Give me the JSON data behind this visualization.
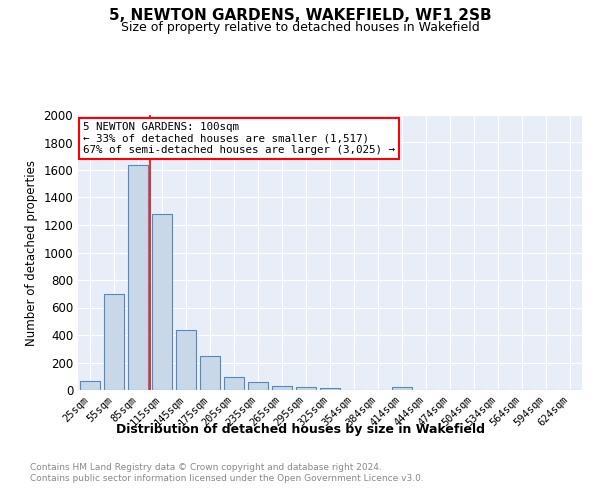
{
  "title": "5, NEWTON GARDENS, WAKEFIELD, WF1 2SB",
  "subtitle": "Size of property relative to detached houses in Wakefield",
  "xlabel": "Distribution of detached houses by size in Wakefield",
  "ylabel": "Number of detached properties",
  "bar_color": "#c8d8e8",
  "bar_edge_color": "#5588bb",
  "background_color": "#e8eef8",
  "categories": [
    "25sqm",
    "55sqm",
    "85sqm",
    "115sqm",
    "145sqm",
    "175sqm",
    "205sqm",
    "235sqm",
    "265sqm",
    "295sqm",
    "325sqm",
    "354sqm",
    "384sqm",
    "414sqm",
    "444sqm",
    "474sqm",
    "504sqm",
    "534sqm",
    "564sqm",
    "594sqm",
    "624sqm"
  ],
  "values": [
    65,
    695,
    1635,
    1280,
    440,
    250,
    95,
    55,
    30,
    25,
    15,
    0,
    0,
    20,
    0,
    0,
    0,
    0,
    0,
    0,
    0
  ],
  "red_line_x": 2.5,
  "annotation_text_line1": "5 NEWTON GARDENS: 100sqm",
  "annotation_text_line2": "← 33% of detached houses are smaller (1,517)",
  "annotation_text_line3": "67% of semi-detached houses are larger (3,025) →",
  "ylim": [
    0,
    2000
  ],
  "yticks": [
    0,
    200,
    400,
    600,
    800,
    1000,
    1200,
    1400,
    1600,
    1800,
    2000
  ],
  "footer_line1": "Contains HM Land Registry data © Crown copyright and database right 2024.",
  "footer_line2": "Contains public sector information licensed under the Open Government Licence v3.0."
}
